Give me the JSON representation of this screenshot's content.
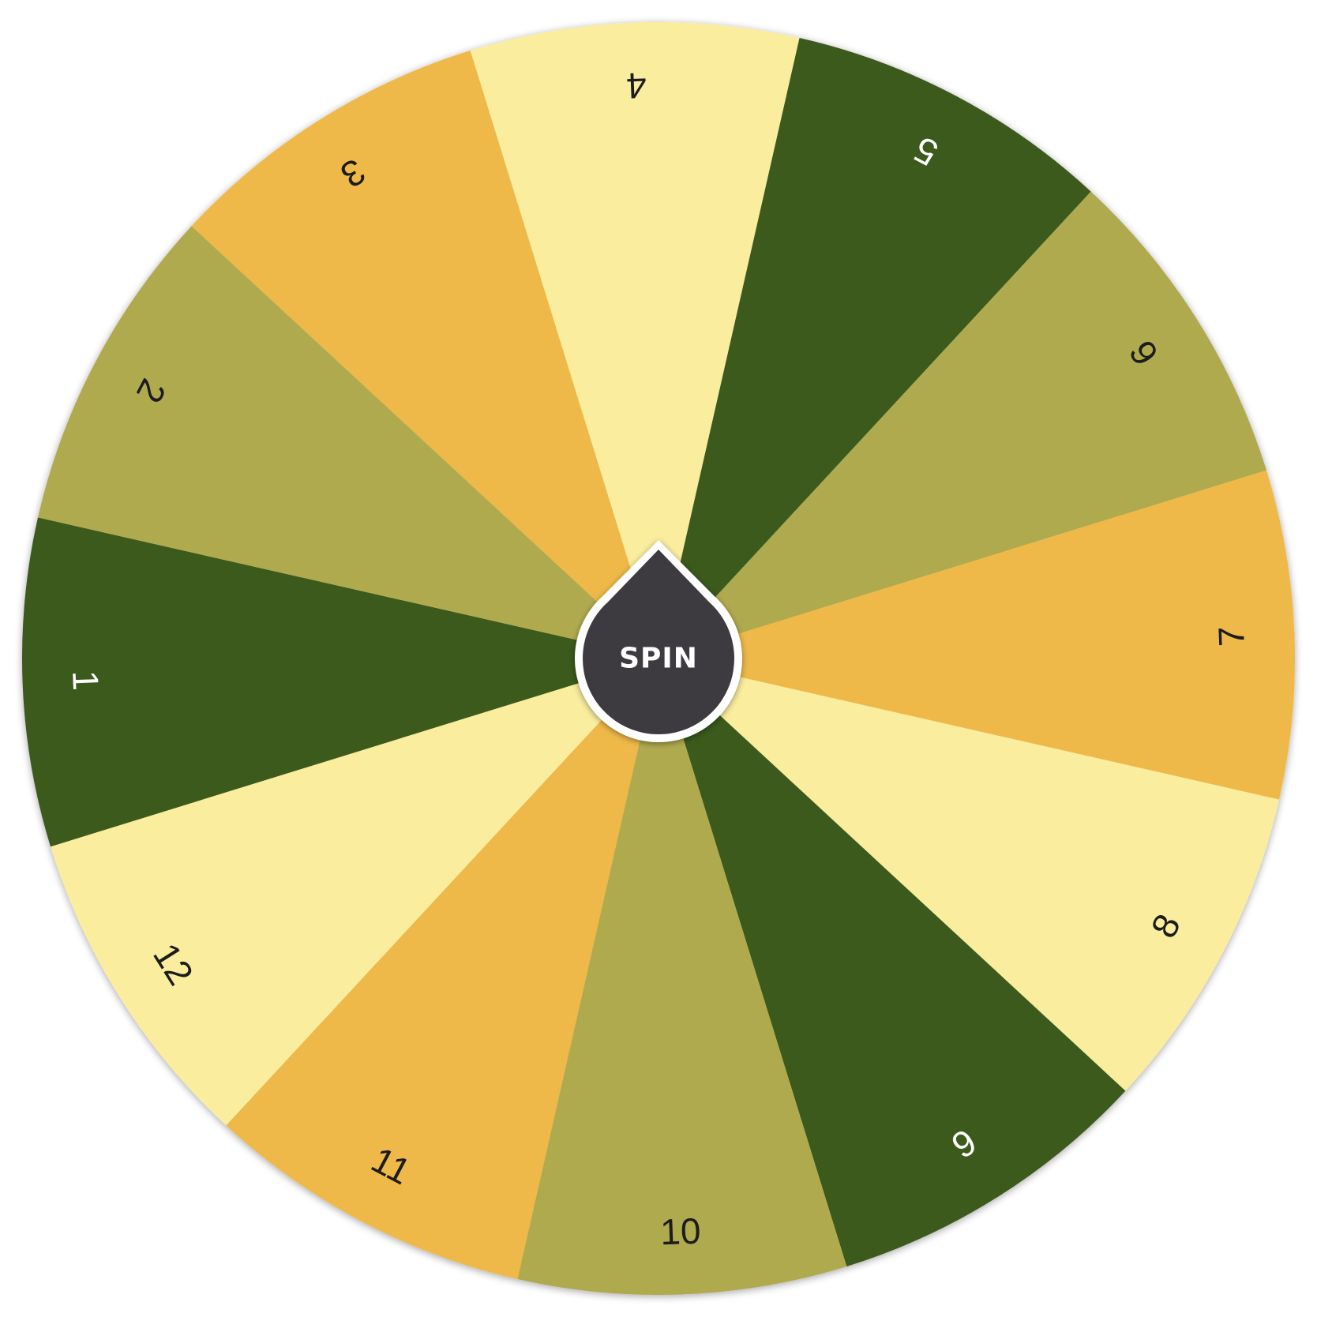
{
  "wheel": {
    "segments": [
      {
        "label": "1",
        "color": "#3a5a1f",
        "text_color": "#ffffff"
      },
      {
        "label": "2",
        "color": "#b0aa4f",
        "text_color": "#1a1a1a"
      },
      {
        "label": "3",
        "color": "#eeb948",
        "text_color": "#1a1a1a"
      },
      {
        "label": "4",
        "color": "#faed9e",
        "text_color": "#1a1a1a"
      },
      {
        "label": "5",
        "color": "#3a5a1f",
        "text_color": "#ffffff"
      },
      {
        "label": "6",
        "color": "#b0aa4f",
        "text_color": "#1a1a1a"
      },
      {
        "label": "7",
        "color": "#eeb948",
        "text_color": "#1a1a1a"
      },
      {
        "label": "8",
        "color": "#faed9e",
        "text_color": "#1a1a1a"
      },
      {
        "label": "9",
        "color": "#3a5a1f",
        "text_color": "#ffffff"
      },
      {
        "label": "10",
        "color": "#b0aa4f",
        "text_color": "#1a1a1a"
      },
      {
        "label": "11",
        "color": "#eeb948",
        "text_color": "#1a1a1a"
      },
      {
        "label": "12",
        "color": "#faed9e",
        "text_color": "#1a1a1a"
      }
    ]
  },
  "spin_button": {
    "label": "SPIN",
    "color": "#3c3b3f",
    "ring_color": "#ffffff",
    "text_color": "#ffffff"
  }
}
